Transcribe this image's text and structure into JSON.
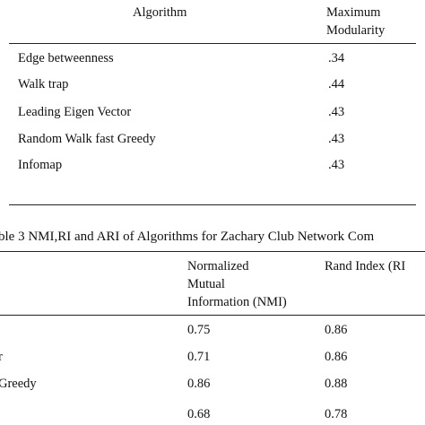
{
  "table2": {
    "col_algorithm": "Algorithm",
    "col_modularity_line1": "Maximum",
    "col_modularity_line2": "Modularity",
    "rows": [
      {
        "name": "Edge betweenness",
        "value": ".34"
      },
      {
        "name": "Walk trap",
        "value": ".44"
      },
      {
        "name": "Leading Eigen Vector",
        "value": ".43"
      },
      {
        "name": "Random Walk fast Greedy",
        "value": ".43"
      },
      {
        "name": "Infomap",
        "value": ".43"
      }
    ]
  },
  "table3": {
    "caption": "ble 3 NMI,RI and ARI of Algorithms   for Zachary Club Network Com",
    "col_nmi_line1": "Normalized",
    "col_nmi_line2": "Mutual",
    "col_nmi_line3": "Information (NMI)",
    "col_ri": "Rand Index (RI",
    "rows": [
      {
        "name": "",
        "nmi": "0.75",
        "ri": "0.86"
      },
      {
        "name": "r",
        "nmi": "0.71",
        "ri": "0.86"
      },
      {
        "name": "Greedy",
        "nmi": "0.86",
        "ri": "0.88"
      },
      {
        "name": "",
        "nmi": "0.68",
        "ri": "0.78"
      }
    ]
  }
}
